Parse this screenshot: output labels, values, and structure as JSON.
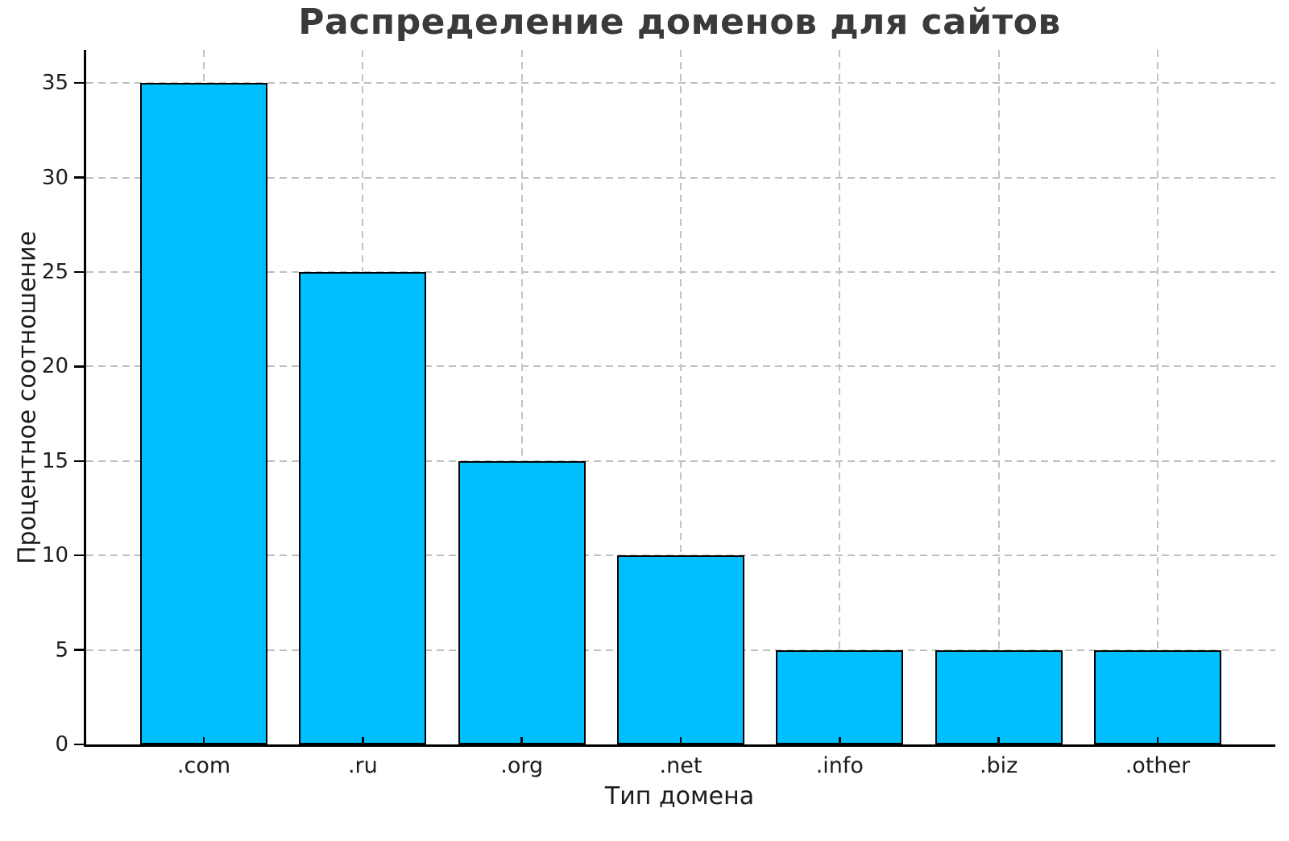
{
  "figure": {
    "background": "#ffffff"
  },
  "chart_data": {
    "type": "bar",
    "title": "Распределение доменов для сайтов",
    "xlabel": "Тип домена",
    "ylabel": "Процентное соотношение",
    "categories": [
      ".com",
      ".ru",
      ".org",
      ".net",
      ".info",
      ".biz",
      ".other"
    ],
    "values": [
      35,
      25,
      15,
      10,
      5,
      5,
      5
    ],
    "ylim": [
      0,
      36.75
    ],
    "yticks": [
      0,
      5,
      10,
      15,
      20,
      25,
      30,
      35
    ],
    "grid": true,
    "grid_axes": "both",
    "grid_style": "dashed",
    "grid_color": "#bfbfbf",
    "bar_color": "#00BFFF",
    "bar_edge_color": "#000000",
    "title_color": "#3a3a3a",
    "text_color": "#1c1c1c",
    "legend": "none"
  }
}
